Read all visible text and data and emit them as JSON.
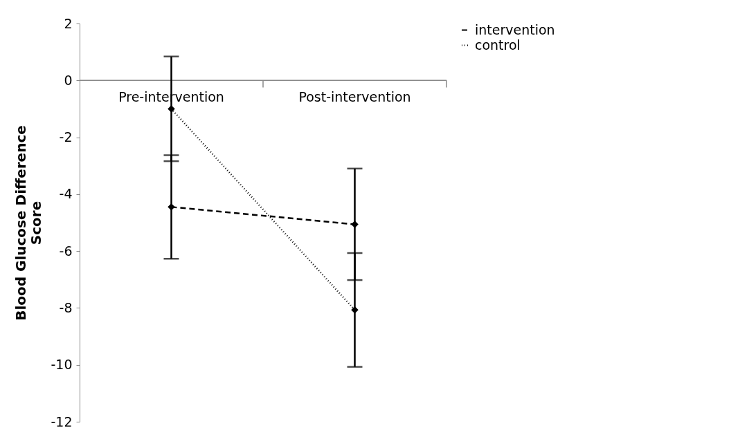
{
  "chart_data": {
    "type": "line",
    "ylabel": "Blood Glucose Difference Score",
    "categories": [
      "Pre-intervention",
      "Post-intervention"
    ],
    "series": [
      {
        "name": "intervention",
        "color": "#000000",
        "values": [
          -4.45,
          -5.06
        ],
        "errors": [
          1.82,
          1.96
        ],
        "line_style": "dashed"
      },
      {
        "name": "control",
        "color": "#000000",
        "values": [
          -1.0,
          -8.07
        ],
        "errors": [
          1.84,
          2.0
        ],
        "line_style": "dotted"
      }
    ],
    "ylim": [
      -12,
      2
    ],
    "yticks": [
      -12,
      -10,
      -8,
      -6,
      -4,
      -2,
      0,
      2
    ],
    "grid": false,
    "legend": "right",
    "marker": "diamond"
  }
}
